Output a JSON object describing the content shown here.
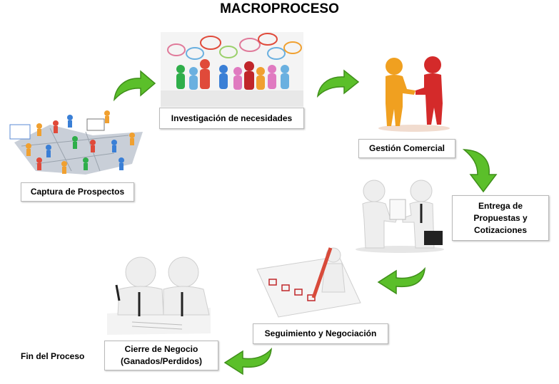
{
  "title": "MACROPROCESO",
  "steps": [
    {
      "label": "Captura de Prospectos"
    },
    {
      "label": "Investigación de necesidades"
    },
    {
      "label": "Gestión Comercial"
    },
    {
      "label": "Entrega de\nPropuestas  y\nCotizaciones"
    },
    {
      "label": "Seguimiento y Negociación"
    },
    {
      "label": "Cierre de Negocio\n(Ganados/Perdidos)"
    },
    {
      "label": "Fin del Proceso"
    }
  ],
  "colors": {
    "arrow": "#5bbf2a",
    "arrow_dark": "#3f8f1a",
    "figure_white": "#eeeeee"
  }
}
